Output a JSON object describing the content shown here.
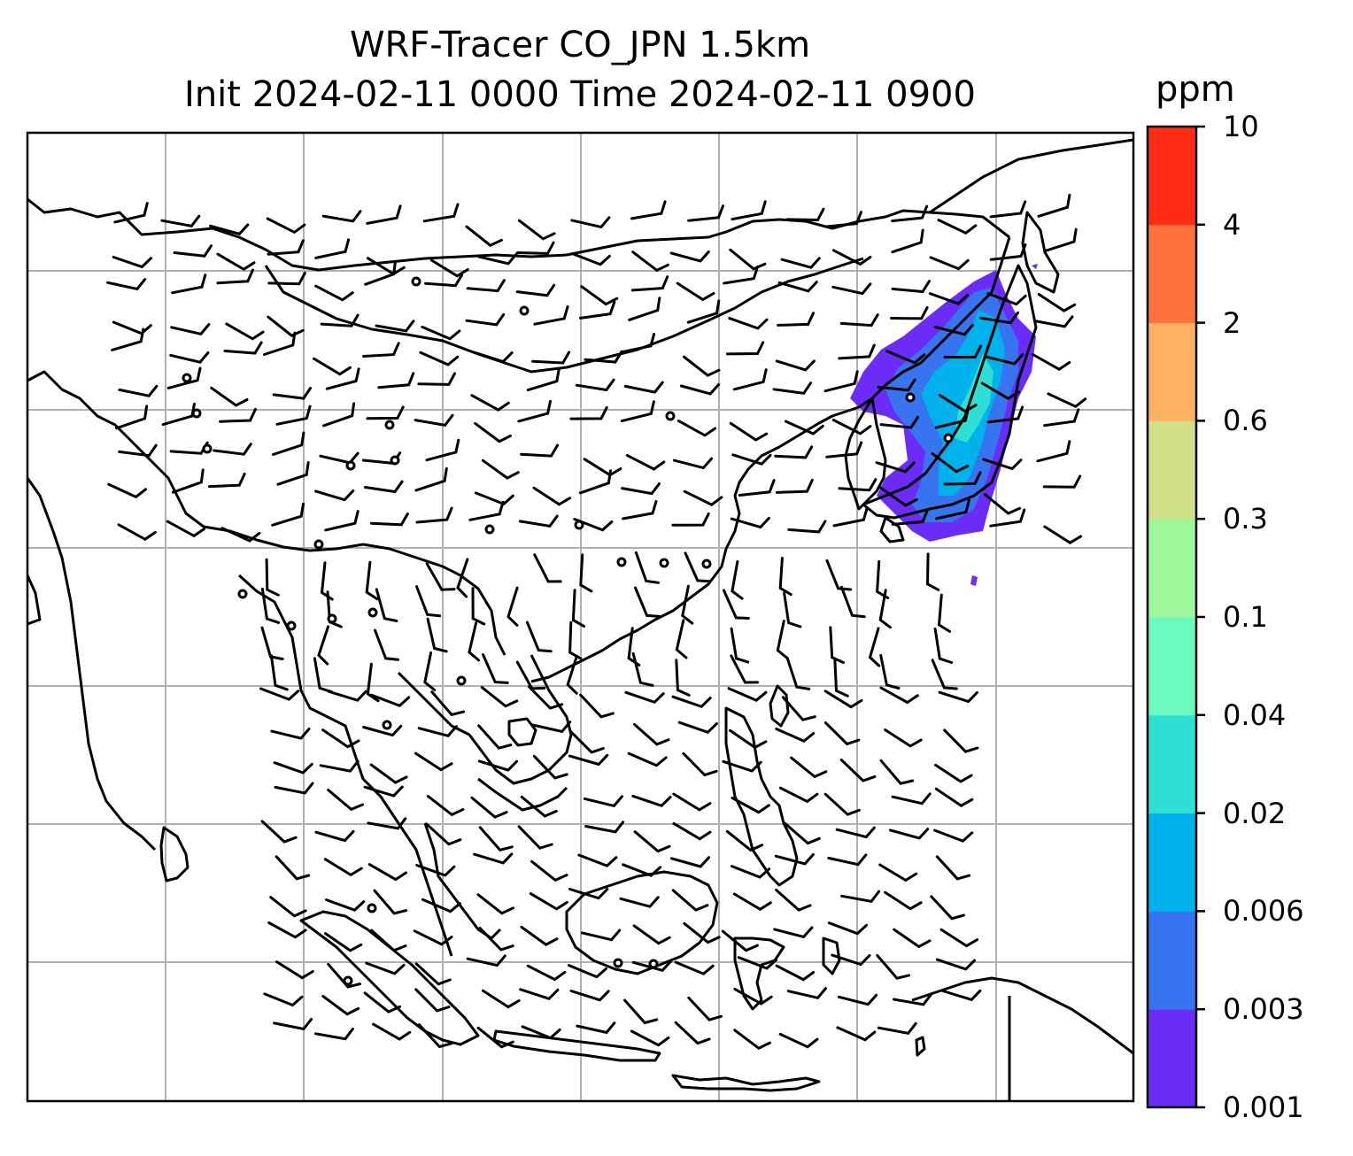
{
  "title": "WRF-Tracer CO_JPN 1.5km",
  "subtitle": "Init 2024-02-11 0000 Time 2024-02-11 0900",
  "colorbar": {
    "unit": "ppm",
    "ticks": [
      "0.001",
      "0.003",
      "0.006",
      "0.02",
      "0.04",
      "0.1",
      "0.3",
      "0.6",
      "2",
      "4",
      "10"
    ],
    "colors": [
      "#6a2cf6",
      "#3674f0",
      "#00b2ec",
      "#2edfd3",
      "#6afac2",
      "#9ef89a",
      "#d1e087",
      "#fdb163",
      "#ff723e",
      "#ff2c16"
    ]
  },
  "map": {
    "land_outline_color": "#000000",
    "gridline_color": "#b0b0b0",
    "wind_barbs": true,
    "calm_circles": true,
    "plume_colors": [
      "#6a2cf6",
      "#3674f0",
      "#00b2ec",
      "#2edfd3"
    ]
  }
}
